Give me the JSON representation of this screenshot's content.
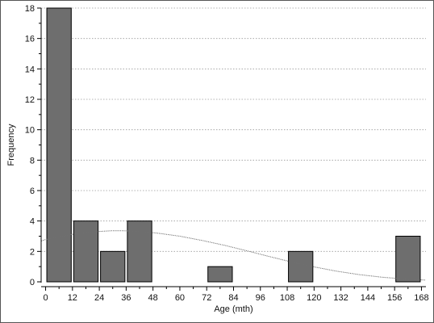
{
  "chart_data": {
    "type": "bar",
    "title": "",
    "xlabel": "Age (mth)",
    "ylabel": "Frequency",
    "bin_width": 12,
    "x": [
      0,
      12,
      24,
      36,
      72,
      108,
      156
    ],
    "values": [
      18,
      4,
      2,
      4,
      1,
      2,
      3
    ],
    "xlim": [
      -2,
      170
    ],
    "ylim": [
      0,
      18
    ],
    "xticks": [
      "0",
      "12",
      "24",
      "36",
      "48",
      "60",
      "72",
      "84",
      "96",
      "108",
      "120",
      "132",
      "144",
      "156",
      "168"
    ],
    "yticks": [
      "0",
      "2",
      "4",
      "6",
      "8",
      "10",
      "12",
      "14",
      "16",
      "18"
    ],
    "grid": "horizontal dotted",
    "curve": {
      "type": "normal-fit",
      "x": [
        -2,
        0,
        10,
        20,
        30,
        34,
        40,
        50,
        60,
        70,
        80,
        90,
        100,
        110,
        120,
        130,
        140,
        150,
        160,
        170
      ],
      "y": [
        2.68,
        2.78,
        3.08,
        3.28,
        3.36,
        3.36,
        3.33,
        3.2,
        3.0,
        2.72,
        2.4,
        2.04,
        1.66,
        1.3,
        0.98,
        0.7,
        0.48,
        0.31,
        0.19,
        0.11
      ]
    },
    "colors": {
      "bar_fill": "#6e6e6e",
      "bar_stroke": "#000000",
      "grid": "#9a9a9a",
      "curve": "#707070",
      "axis": "#000000"
    }
  }
}
